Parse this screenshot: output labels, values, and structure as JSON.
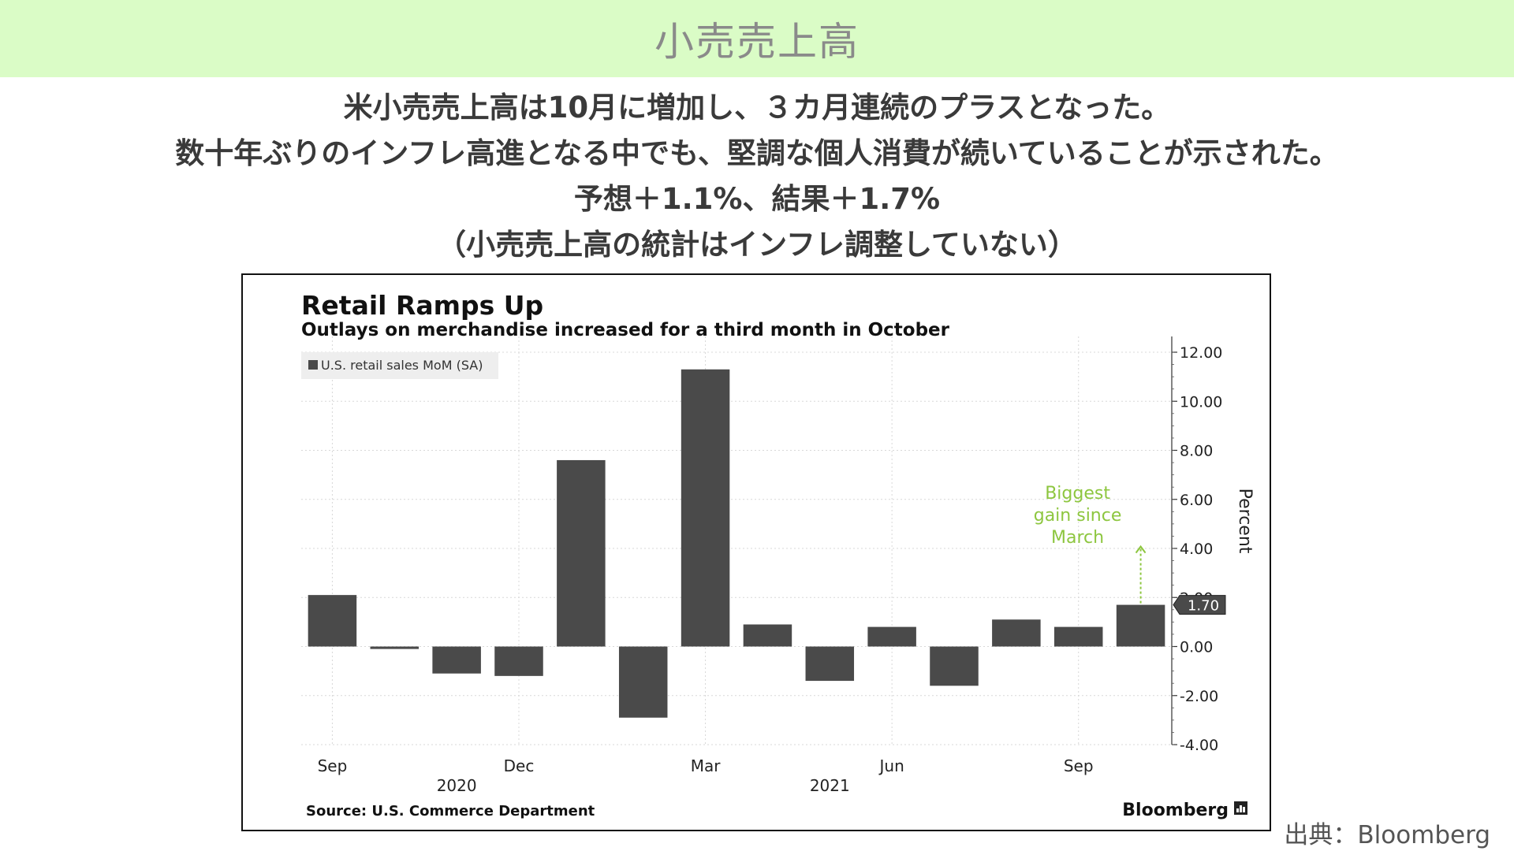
{
  "header": {
    "title": "小売売上高"
  },
  "summary": {
    "lines": [
      "米小売売上高は10月に増加し、３カ月連続のプラスとなった。",
      "数十年ぶりのインフレ高進となる中でも、堅調な個人消費が続いていることが示された。",
      "予想＋1.1%、結果＋1.7%",
      "（小売売上高の統計はインフレ調整していない）"
    ]
  },
  "chart_data": {
    "type": "bar",
    "title": "Retail Ramps Up",
    "subtitle": "Outlays on merchandise increased for a third month in October",
    "legend": {
      "label": "U.S. retail sales MoM (SA)",
      "placement": "top-left"
    },
    "categories": [
      "2020-09",
      "2020-10",
      "2020-11",
      "2020-12",
      "2021-01",
      "2021-02",
      "2021-03",
      "2021-04",
      "2021-05",
      "2021-06",
      "2021-07",
      "2021-08",
      "2021-09",
      "2021-10"
    ],
    "values": [
      2.1,
      -0.1,
      -1.1,
      -1.2,
      7.6,
      -2.9,
      11.3,
      0.9,
      -1.4,
      0.8,
      -1.6,
      1.1,
      0.8,
      1.7
    ],
    "bar_color": "#4a4a4a",
    "ylabel": "Percent",
    "ylim": [
      -4,
      12
    ],
    "yticks": [
      "12.00",
      "10.00",
      "8.00",
      "6.00",
      "4.00",
      "2.00",
      "0.00",
      "-2.00",
      "-4.00"
    ],
    "axis_side": "right",
    "xtick_labels": [
      {
        "label": "Sep",
        "category": "2020-09"
      },
      {
        "label": "Dec",
        "category": "2020-12"
      },
      {
        "label": "Mar",
        "category": "2021-03"
      },
      {
        "label": "Jun",
        "category": "2021-06"
      },
      {
        "label": "Sep",
        "category": "2021-09"
      }
    ],
    "year_labels": [
      {
        "label": "2020",
        "category": "2020-11"
      },
      {
        "label": "2021",
        "category": "2021-05"
      }
    ],
    "grid": true,
    "last_value_label": "1.70",
    "annotation": {
      "lines": [
        "Biggest",
        "gain since",
        "March"
      ],
      "category": "2021-10",
      "color": "#8dc63f"
    },
    "source": "Source: U.S. Commerce Department",
    "brand": "Bloomberg"
  },
  "footer": {
    "credit": "出典：Bloomberg"
  }
}
